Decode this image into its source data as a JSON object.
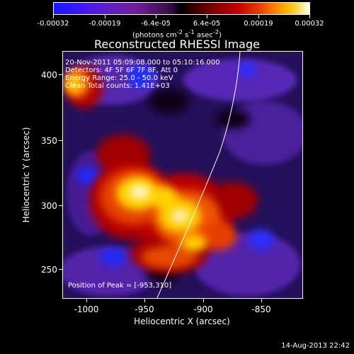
{
  "colorbar": {
    "tick_labels": [
      "-0.00032",
      "-0.00019",
      "-6.4e-05",
      "6.4e-05",
      "0.00019",
      "0.00032"
    ],
    "units_text": "(photons cm",
    "units_sup1": "-2",
    "units_mid": " s",
    "units_sup2": "-1",
    "units_end": " asec",
    "units_sup3": "-2",
    "units_close": ")"
  },
  "title": "Reconstructed RHESSI Image",
  "info": {
    "line1": "20-Nov-2011 05:09:08.000 to 05:10:16.000",
    "line2": "Detectors: 4F 5F 6F 7F 8F, Att 0",
    "line3": "Energy Range: 25.0 - 50.0 keV",
    "line4": "Clean    Total counts: 1.41E+03"
  },
  "peak_text": "Position of Peak = [-953,310]",
  "axes": {
    "x_title": "Heliocentric X (arcsec)",
    "y_title": "Heliocentric Y (arcsec)",
    "x_ticks": [
      "-1000",
      "-950",
      "-900",
      "-850"
    ],
    "y_ticks": [
      "250",
      "300",
      "350",
      "400"
    ]
  },
  "timestamp": "14-Aug-2013 22:42"
}
